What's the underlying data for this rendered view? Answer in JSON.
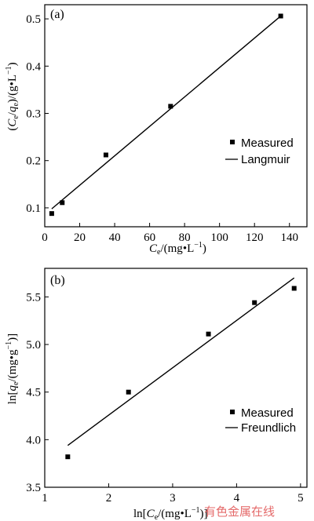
{
  "chart_data": [
    {
      "type": "scatter",
      "panel_label": "(a)",
      "xlabel": "C_e/(mg·L⁻¹)",
      "ylabel": "(C_e/q_e)/(g·L⁻¹)",
      "xlim": [
        0,
        150
      ],
      "ylim": [
        0.06,
        0.53
      ],
      "xticks": [
        0,
        20,
        40,
        60,
        80,
        100,
        120,
        140
      ],
      "yticks": [
        0.1,
        0.2,
        0.3,
        0.4,
        0.5
      ],
      "ytick_labels": [
        "0.1",
        "0.2",
        "0.3",
        "0.4",
        "0.5"
      ],
      "legend_position": "right",
      "series": [
        {
          "name": "Measured",
          "kind": "points",
          "x": [
            4,
            10,
            35,
            72,
            135
          ],
          "y": [
            0.088,
            0.111,
            0.212,
            0.315,
            0.506
          ]
        },
        {
          "name": "Langmuir",
          "kind": "line",
          "x": [
            4,
            135
          ],
          "y": [
            0.098,
            0.506
          ]
        }
      ]
    },
    {
      "type": "scatter",
      "panel_label": "(b)",
      "xlabel": "ln[C_e/(mg·L⁻¹)]",
      "ylabel": "ln[q_e/(mg·g⁻¹)]",
      "xlim": [
        1,
        5.1
      ],
      "ylim": [
        3.5,
        5.8
      ],
      "xticks": [
        1,
        2,
        3,
        4,
        5
      ],
      "yticks": [
        3.5,
        4.0,
        4.5,
        5.0,
        5.5
      ],
      "ytick_labels": [
        "3.5",
        "4.0",
        "4.5",
        "5.0",
        "5.5"
      ],
      "legend_position": "bottom-right",
      "series": [
        {
          "name": "Measured",
          "kind": "points",
          "x": [
            1.36,
            2.31,
            3.56,
            4.28,
            4.9
          ],
          "y": [
            3.82,
            4.5,
            5.11,
            5.44,
            5.59
          ]
        },
        {
          "name": "Freundlich",
          "kind": "line",
          "x": [
            1.36,
            4.9
          ],
          "y": [
            3.94,
            5.7
          ]
        }
      ]
    }
  ],
  "watermark": {
    "text": "有色金属在线",
    "color": "#e05050"
  }
}
